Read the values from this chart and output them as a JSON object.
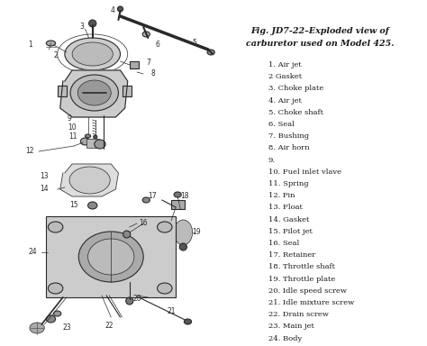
{
  "title_line1": "Fig. JD7-22–Exploded view of",
  "title_line2": "carburetor used on Model 425.",
  "background_color": "#ffffff",
  "text_color": "#1a1a1a",
  "diagram_color": "#2a2a2a",
  "parts": [
    "1. Air jet",
    "2 Gasket",
    "3. Choke plate",
    "4. Air jet",
    "5. Choke shaft",
    "6. Seal",
    "7. Bushing",
    "8. Air horn",
    "9.",
    "10. Fuel inlet vlave",
    "11. Spring",
    "12. Pin",
    "13. Float",
    "14. Gasket",
    "15. Pilot jet",
    "16. Seal",
    "17. Retainer",
    "18. Throttle shaft",
    "19. Throttle plate",
    "20. Idle speed screw",
    "21. Idle mixture screw",
    "22. Drain screw",
    "23. Main jet",
    "24. Body"
  ],
  "fig_width": 4.74,
  "fig_height": 3.84,
  "dpi": 100
}
